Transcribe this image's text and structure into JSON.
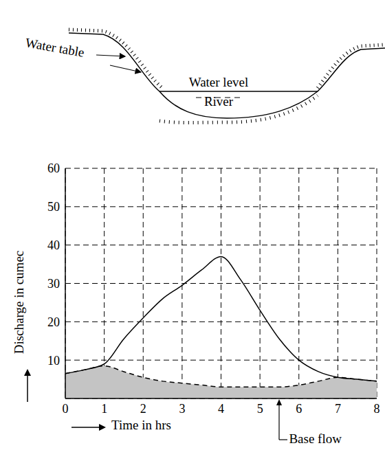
{
  "diagram": {
    "water_table": "Water table",
    "water_level": "Water level",
    "river": "River"
  },
  "chart_data": {
    "type": "line",
    "x_label": "Time in hrs",
    "y_label": "Discharge in cumec",
    "x": [
      0,
      0.5,
      1,
      1.5,
      2,
      2.5,
      3,
      3.5,
      4,
      4.5,
      5,
      5.5,
      6,
      6.5,
      7,
      7.5,
      8
    ],
    "series": [
      {
        "type": "line",
        "color": "#000000",
        "line_style": "solid",
        "values": [
          6.5,
          7.5,
          9,
          15.5,
          21,
          26,
          29.5,
          33.5,
          37,
          31,
          23,
          15.5,
          10,
          7,
          5.5,
          5,
          4.5
        ]
      },
      {
        "type": "area",
        "color": "#000000",
        "line_style": "dashed",
        "values": [
          6.5,
          7.5,
          8.5,
          7,
          5.5,
          4.5,
          4,
          3.5,
          3,
          3,
          3,
          3,
          3.5,
          4.5,
          5.5,
          5,
          4.5
        ]
      }
    ],
    "annotations": [
      {
        "text": "Base flow",
        "x": 5.5
      }
    ],
    "xlim": [
      0,
      8
    ],
    "xticks": [
      0,
      1,
      2,
      3,
      4,
      5,
      6,
      7,
      8
    ],
    "ylim": [
      0,
      60
    ],
    "yticks": [
      10,
      20,
      30,
      40,
      50,
      60
    ],
    "grid": true
  }
}
